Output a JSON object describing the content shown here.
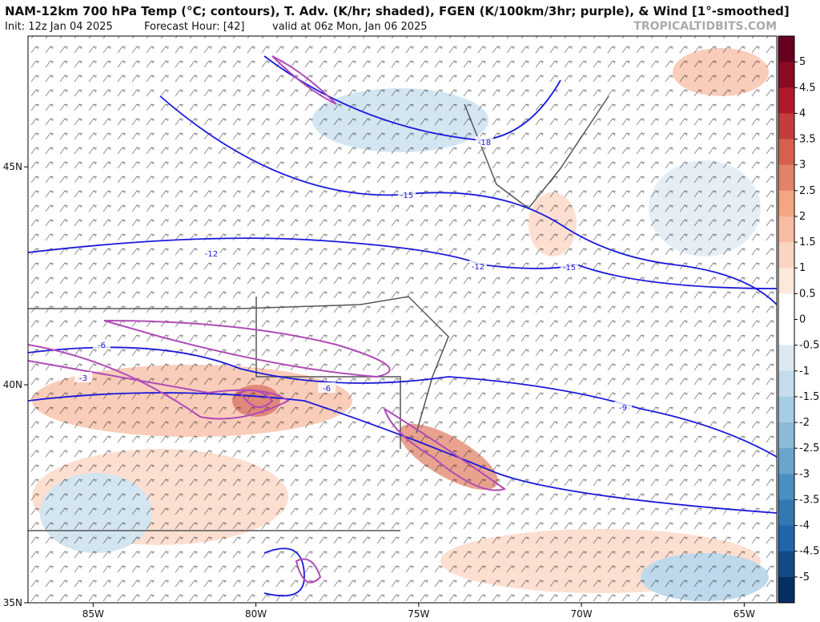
{
  "header": {
    "title": "NAM-12km 700 hPa Temp (°C; contours), T. Adv. (K/hr; shaded), FGEN (K/100km/3hr; purple), & Wind [1°-smoothed]",
    "init": "Init: 12z Jan 04 2025",
    "forecast_hour": "Forecast Hour: [42]",
    "valid": "valid at 06z Mon, Jan 06 2025",
    "credit": "TROPICALTIDBITS.COM"
  },
  "map": {
    "lonlim": [
      -87,
      -64
    ],
    "latlim": [
      35,
      48
    ],
    "lat_ticks": [
      {
        "value": 45,
        "label": "45N"
      },
      {
        "value": 40,
        "label": "40N"
      },
      {
        "value": 35,
        "label": "35N"
      }
    ],
    "lon_ticks": [
      {
        "value": -85,
        "label": "85W"
      },
      {
        "value": -80,
        "label": "80W"
      },
      {
        "value": -75,
        "label": "75W"
      },
      {
        "value": -70,
        "label": "70W"
      },
      {
        "value": -65,
        "label": "65W"
      }
    ],
    "contour_labels": [
      -18,
      -15,
      -12,
      -12,
      -15,
      -9,
      -6,
      -6,
      -3
    ]
  },
  "colorbar": {
    "lim": [
      -5.5,
      5.5
    ],
    "ticks": [
      5,
      4.5,
      4,
      3.5,
      3,
      2.5,
      2,
      1.5,
      1,
      0.5,
      0,
      -0.5,
      -1,
      -1.5,
      -2,
      -2.5,
      -3,
      -3.5,
      -4,
      -4.5,
      -5
    ],
    "colors": [
      "#67001f",
      "#8b0a24",
      "#b2182b",
      "#c43c3c",
      "#d6604d",
      "#e28368",
      "#f4a582",
      "#f7bda3",
      "#fbd5c2",
      "#fde8dc",
      "#ffffff",
      "#ffffff",
      "#dde9f2",
      "#c4dcec",
      "#a7cde4",
      "#8cbbd9",
      "#6aa5cd",
      "#4a8fc1",
      "#3478b3",
      "#2166ac",
      "#134b87",
      "#053061"
    ]
  }
}
